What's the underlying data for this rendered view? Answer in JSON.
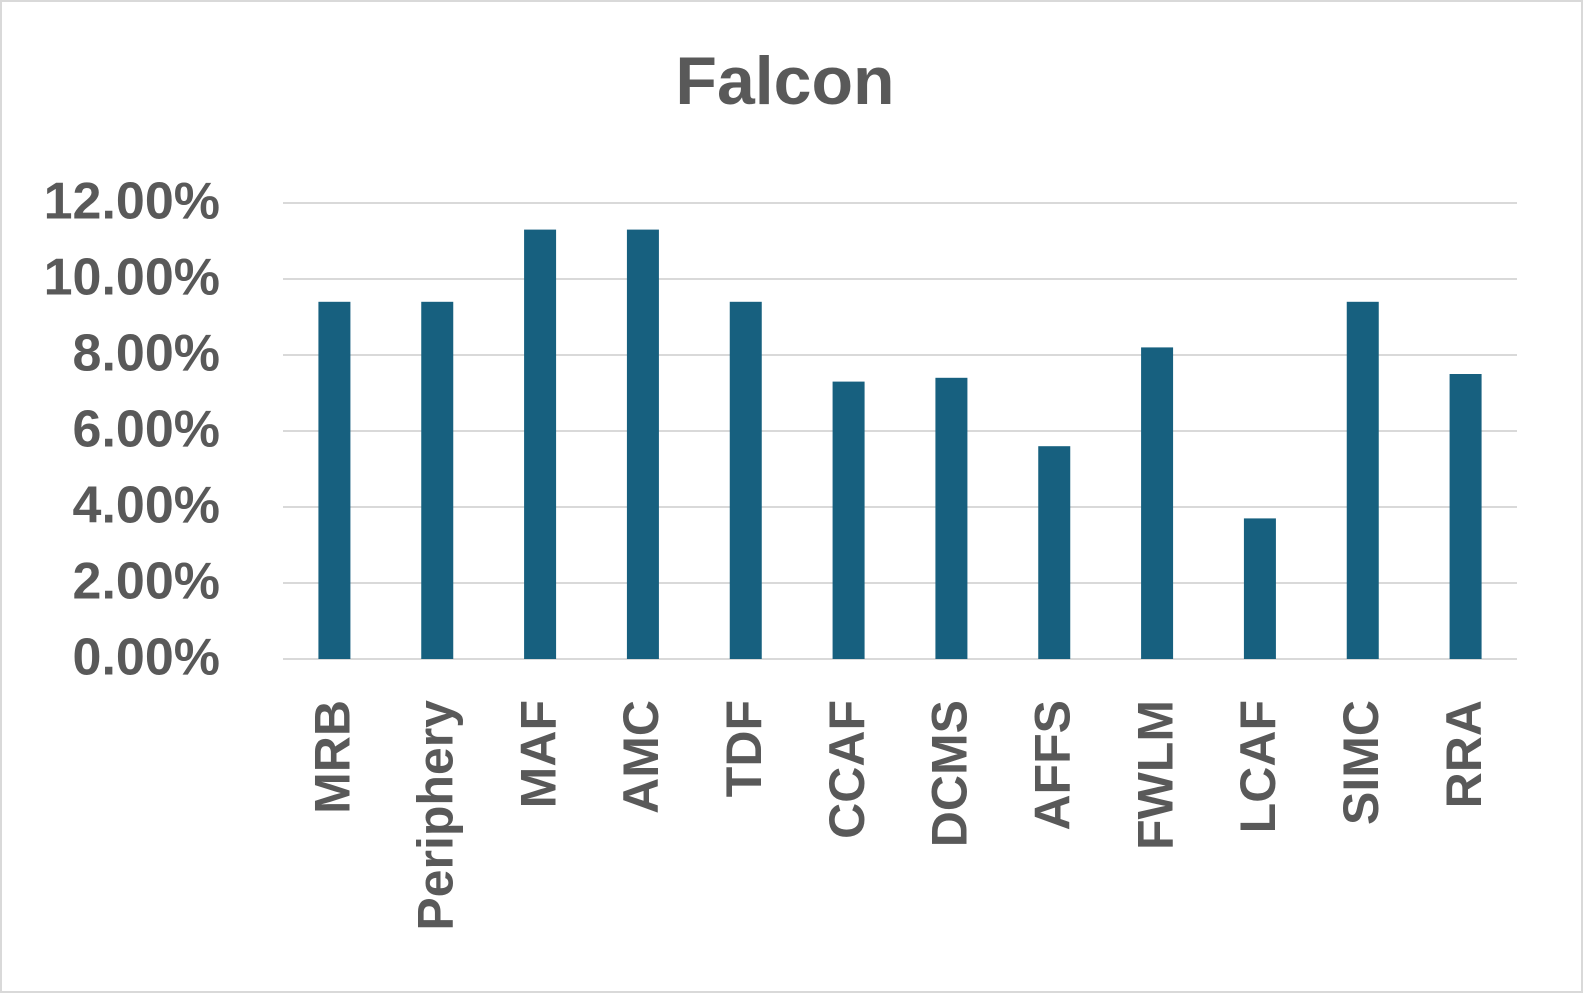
{
  "chart_data": {
    "type": "bar",
    "title": "Falcon",
    "categories": [
      "MRB",
      "Periphery",
      "MAF",
      "AMC",
      "TDF",
      "CCAF",
      "DCMS",
      "AFFS",
      "FWLM",
      "LCAF",
      "SIMC",
      "RRA"
    ],
    "values": [
      9.4,
      9.4,
      11.3,
      11.3,
      9.4,
      7.3,
      7.4,
      5.6,
      8.2,
      3.7,
      9.4,
      7.5
    ],
    "color": "#17607f",
    "ylim": [
      0,
      12
    ],
    "yticks": [
      {
        "value": 0,
        "label": "0.00%"
      },
      {
        "value": 2,
        "label": "2.00%"
      },
      {
        "value": 4,
        "label": "4.00%"
      },
      {
        "value": 6,
        "label": "6.00%"
      },
      {
        "value": 8,
        "label": "8.00%"
      },
      {
        "value": 10,
        "label": "10.00%"
      },
      {
        "value": 12,
        "label": "12.00%"
      }
    ],
    "grid": true
  }
}
